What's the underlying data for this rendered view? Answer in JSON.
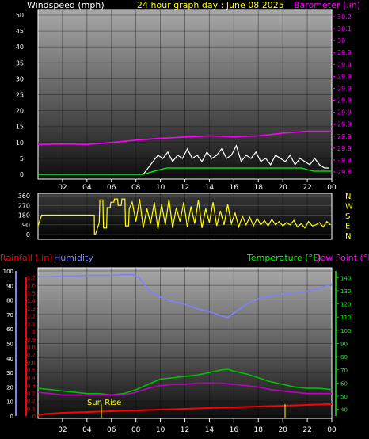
{
  "header": {
    "left_label": "Windspeed (mph)",
    "center_label": "24 hour graph day : June 08 2025",
    "right_label": "Barometer (.in)"
  },
  "bottom_header": {
    "rainfall_label": "Rainfall (.in)",
    "humidity_label": "Humidity",
    "temperature_label": "Temperature (°F)",
    "dewpoint_label": "Dew Point (°F)"
  },
  "annotations": {
    "sunrise": "Sun Rise"
  },
  "colors": {
    "windspeed": "#ffffff",
    "wind_avg": "#00ff00",
    "barometer": "#ff00ff",
    "direction": "#ffff00",
    "humidity": "#8080ff",
    "temperature": "#00c000",
    "dewpoint": "#c000c0",
    "rain": "#ff0000",
    "header_text": "#ffff00",
    "axis_label": "#ffffff"
  },
  "chart_data": [
    {
      "type": "line",
      "panel": "wind_barometer",
      "x_ticks": [
        "02",
        "04",
        "06",
        "08",
        "10",
        "12",
        "14",
        "16",
        "18",
        "20",
        "22",
        "00"
      ],
      "xlim": [
        0,
        24
      ],
      "left_axis": {
        "label": "Windspeed (mph)",
        "ylim": [
          0,
          50
        ],
        "ticks": [
          "0",
          "5",
          "10",
          "15",
          "20",
          "25",
          "30",
          "35",
          "40",
          "45",
          "50"
        ]
      },
      "right_axis": {
        "label": "Barometer (.in)",
        "ylim": [
          29.8,
          30.2
        ],
        "ticks": [
          "29.8",
          "29.9",
          "29.9",
          "29.9",
          "29.9",
          "29.9",
          "29.9",
          "29.9",
          "29.9",
          "29.9",
          "29.9",
          "30",
          "30.1",
          "30.2"
        ]
      },
      "series": [
        {
          "name": "Windspeed",
          "axis": "left",
          "x": [
            0,
            8.6,
            9.0,
            9.4,
            9.8,
            10.2,
            10.6,
            11.0,
            11.4,
            11.8,
            12.2,
            12.6,
            13.0,
            13.4,
            13.8,
            14.2,
            14.6,
            15.0,
            15.4,
            15.8,
            16.2,
            16.6,
            17.0,
            17.4,
            17.8,
            18.2,
            18.6,
            19.0,
            19.4,
            19.8,
            20.2,
            20.6,
            21.0,
            21.4,
            21.8,
            22.2,
            22.6,
            23.0,
            23.4,
            23.8
          ],
          "y": [
            0,
            0,
            2,
            4,
            6,
            5,
            7,
            4,
            6,
            5,
            8,
            5,
            6,
            4,
            7,
            5,
            6,
            8,
            5,
            6,
            9,
            4,
            6,
            5,
            7,
            4,
            5,
            3,
            6,
            5,
            4,
            6,
            3,
            5,
            4,
            3,
            5,
            3,
            2,
            2
          ]
        },
        {
          "name": "Wind average",
          "axis": "left",
          "x": [
            0,
            8.6,
            9.5,
            10.5,
            11.5,
            12.5,
            13.5,
            14.5,
            15.5,
            16.5,
            17.5,
            18.5,
            19.5,
            20.5,
            21.5,
            22.5,
            23.5,
            24
          ],
          "y": [
            0,
            0,
            1,
            2,
            2,
            2,
            2,
            2,
            2,
            2,
            2,
            2,
            2,
            2,
            2,
            1,
            1,
            1
          ]
        },
        {
          "name": "Barometer",
          "axis": "right",
          "x": [
            0,
            2,
            4,
            6,
            8,
            10,
            12,
            14,
            16,
            18,
            20,
            22,
            24
          ],
          "y": [
            29.871,
            29.872,
            29.871,
            29.876,
            29.882,
            29.887,
            29.89,
            29.893,
            29.891,
            29.893,
            29.9,
            29.905,
            29.905
          ]
        }
      ]
    },
    {
      "type": "line",
      "panel": "wind_direction",
      "x_ticks": [],
      "xlim": [
        0,
        24
      ],
      "left_axis": {
        "ylim": [
          0,
          360
        ],
        "ticks": [
          "0",
          "90",
          "180",
          "270",
          "360"
        ]
      },
      "right_axis": {
        "labels": [
          "N",
          "W",
          "S",
          "E",
          "N"
        ]
      },
      "series": [
        {
          "name": "Wind direction",
          "x": [
            0,
            0.3,
            0.6,
            4.6,
            4.61,
            4.7,
            5.0,
            5.05,
            5.3,
            5.35,
            5.6,
            5.65,
            5.9,
            5.95,
            6.2,
            6.25,
            6.5,
            6.55,
            6.8,
            6.85,
            7.1,
            7.15,
            7.4,
            7.45,
            7.7,
            8.0,
            8.3,
            8.6,
            8.9,
            9.2,
            9.5,
            9.8,
            10.1,
            10.4,
            10.7,
            11.0,
            11.3,
            11.6,
            11.9,
            12.2,
            12.5,
            12.8,
            13.1,
            13.4,
            13.7,
            14.0,
            14.3,
            14.6,
            14.9,
            15.2,
            15.5,
            15.8,
            16.1,
            16.4,
            16.7,
            17.0,
            17.3,
            17.6,
            17.9,
            18.2,
            18.5,
            18.8,
            19.1,
            19.4,
            19.7,
            20.0,
            20.3,
            20.6,
            20.9,
            21.2,
            21.5,
            21.8,
            22.1,
            22.4,
            22.7,
            23.0,
            23.3,
            23.6,
            23.9
          ],
          "y": [
            80,
            180,
            180,
            180,
            5,
            5,
            110,
            320,
            320,
            60,
            60,
            250,
            250,
            300,
            300,
            330,
            330,
            270,
            270,
            330,
            330,
            80,
            80,
            240,
            300,
            120,
            330,
            60,
            240,
            100,
            300,
            50,
            280,
            90,
            330,
            60,
            250,
            120,
            300,
            70,
            260,
            100,
            320,
            60,
            240,
            110,
            300,
            80,
            220,
            90,
            280,
            100,
            200,
            70,
            170,
            90,
            160,
            80,
            150,
            90,
            130,
            80,
            140,
            90,
            120,
            80,
            110,
            90,
            130,
            70,
            100,
            60,
            120,
            80,
            90,
            110,
            70,
            120,
            90
          ]
        }
      ]
    },
    {
      "type": "line",
      "panel": "temperature_humidity_rain",
      "x_ticks": [
        "02",
        "04",
        "06",
        "08",
        "10",
        "12",
        "14",
        "16",
        "18",
        "20",
        "22",
        "00"
      ],
      "xlim": [
        0,
        24
      ],
      "humidity_axis": {
        "label": "Humidity",
        "ylim": [
          0,
          100
        ],
        "ticks": [
          "0",
          "10",
          "20",
          "30",
          "40",
          "50",
          "60",
          "70",
          "80",
          "90",
          "100"
        ]
      },
      "rain_axis": {
        "label": "Rainfall (.in)",
        "ylim": [
          0,
          1.75
        ],
        "ticks": [
          "0",
          "0.1",
          "0.2",
          "0.2",
          "0.3",
          "0.4",
          "0.5",
          "0.6",
          "0.7",
          "0.8",
          "0.9",
          "1",
          "1.1",
          "1.2",
          "1.3",
          "1.4",
          "1.5",
          "1.6",
          "1.7"
        ]
      },
      "temperature_axis": {
        "label": "Temperature (°F)",
        "ylim": [
          35,
          145
        ],
        "ticks": [
          "40",
          "50",
          "60",
          "70",
          "80",
          "90",
          "100",
          "110",
          "120",
          "130",
          "140"
        ]
      },
      "series": [
        {
          "name": "Humidity",
          "axis": "humidity",
          "x": [
            0,
            1,
            2,
            3,
            4,
            5,
            6,
            7,
            7.8,
            8.3,
            9,
            10,
            11,
            12,
            13,
            14,
            15,
            15.5,
            16,
            17,
            18,
            19,
            20,
            21,
            22,
            23,
            24
          ],
          "y": [
            96,
            96,
            96.5,
            96.5,
            97,
            97,
            97,
            97.5,
            97.5,
            95,
            87,
            82,
            79,
            77,
            74,
            72,
            69,
            68,
            71,
            77,
            81,
            83,
            84,
            85,
            86,
            88,
            91
          ]
        },
        {
          "name": "Temperature",
          "axis": "temperature",
          "x": [
            0,
            1,
            2,
            3,
            4,
            5,
            6,
            7,
            8,
            9,
            10,
            11,
            12,
            13,
            14,
            15,
            15.5,
            16,
            17,
            18,
            19,
            20,
            21,
            22,
            23,
            24
          ],
          "y": [
            56,
            55,
            54,
            53,
            52,
            52,
            51,
            52,
            55,
            59,
            63,
            64,
            65,
            66,
            68,
            70,
            70.5,
            69,
            67,
            64,
            61,
            59,
            57,
            56,
            56,
            55
          ]
        },
        {
          "name": "Dew Point",
          "axis": "temperature",
          "x": [
            0,
            1,
            2,
            3,
            4,
            5,
            6,
            7,
            8,
            9,
            10,
            11,
            12,
            13,
            14,
            15,
            16,
            17,
            18,
            19,
            20,
            21,
            22,
            23,
            24
          ],
          "y": [
            53,
            52,
            51,
            51,
            51,
            51,
            51,
            51,
            53,
            56,
            58,
            59,
            59,
            60,
            60,
            60,
            59,
            58,
            57,
            55,
            54,
            53,
            52,
            52,
            52
          ]
        },
        {
          "name": "Rainfall",
          "axis": "rain",
          "x": [
            0,
            0.5,
            1,
            2,
            4,
            6,
            8,
            10,
            12,
            14,
            16,
            18,
            20,
            22,
            23.6,
            24
          ],
          "y": [
            0.005,
            0.025,
            0.03,
            0.04,
            0.05,
            0.06,
            0.07,
            0.08,
            0.09,
            0.1,
            0.11,
            0.12,
            0.13,
            0.14,
            0.15,
            0.15
          ]
        }
      ]
    }
  ]
}
